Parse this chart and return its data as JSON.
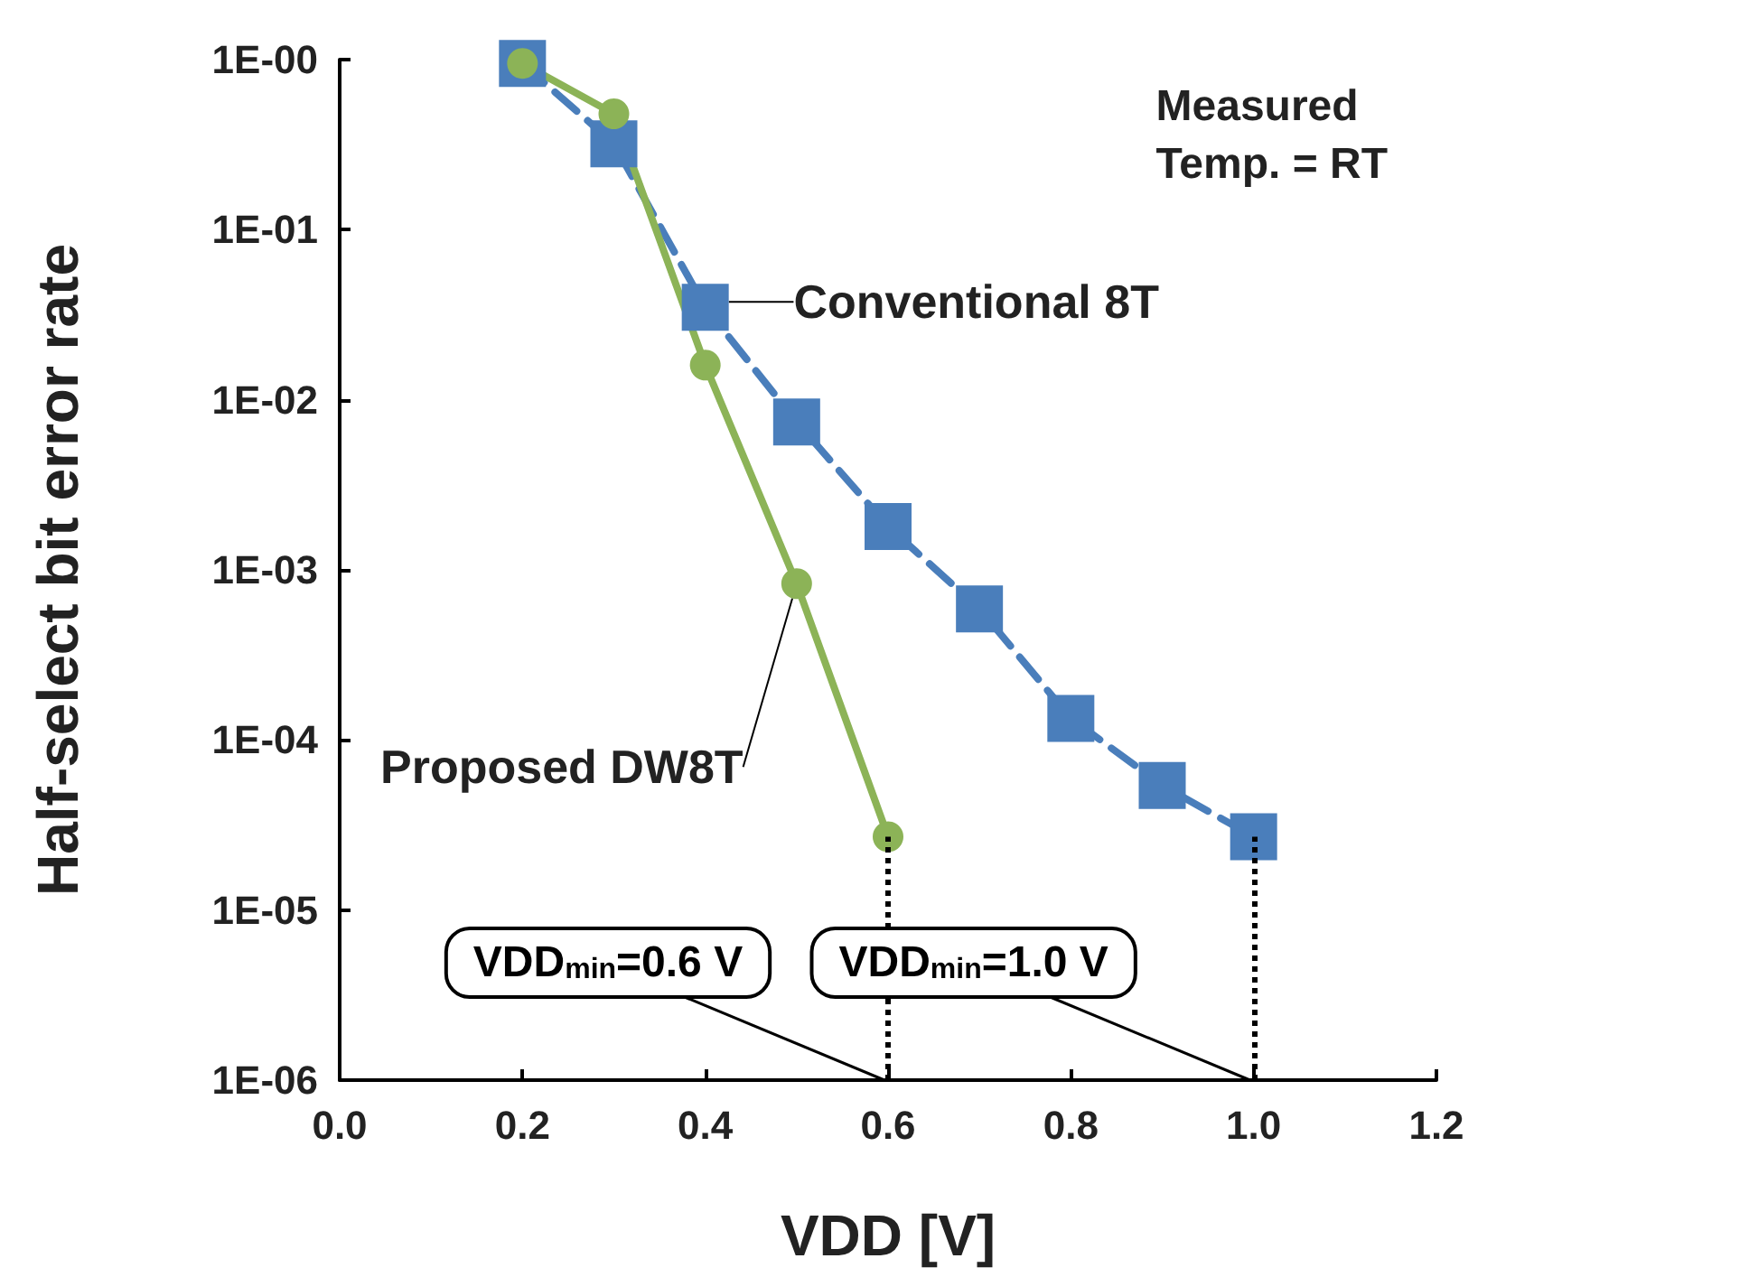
{
  "chart_data": {
    "type": "line",
    "xlabel": "VDD [V]",
    "ylabel": "Half-select bit error rate",
    "log": "y",
    "grid": false,
    "legend": false,
    "xlim": [
      0,
      1.2
    ],
    "xticks": [
      {
        "value": 0,
        "label": "0.0"
      },
      {
        "value": 0.2,
        "label": "0.2"
      },
      {
        "value": 0.4,
        "label": "0.4"
      },
      {
        "value": 0.6,
        "label": "0.6"
      },
      {
        "value": 0.8,
        "label": "0.8"
      },
      {
        "value": 1,
        "label": "1.0"
      },
      {
        "value": 1.2,
        "label": "1.2"
      }
    ],
    "ylim": [
      1e-06,
      1
    ],
    "yticks": [
      {
        "value": 1e-06,
        "label": "1E-06"
      },
      {
        "value": 1e-05,
        "label": "1E-05"
      },
      {
        "value": 0.0001,
        "label": "1E-04"
      },
      {
        "value": 0.001,
        "label": "1E-03"
      },
      {
        "value": 0.01,
        "label": "1E-02"
      },
      {
        "value": 0.1,
        "label": "1E-01"
      },
      {
        "value": 1,
        "label": "1E-00"
      }
    ],
    "series": [
      {
        "name": "Conventional 8T",
        "color": "#4a7ebb",
        "marker": "square",
        "line_style": "dashed",
        "x": [
          0.2,
          0.3,
          0.4,
          0.5,
          0.6,
          0.7,
          0.8,
          0.9,
          1.0
        ],
        "values": [
          0.95,
          0.32,
          0.035,
          0.0074,
          0.0018,
          0.00059,
          0.000134,
          5.4e-05,
          2.7e-05
        ]
      },
      {
        "name": "Proposed DW8T",
        "color": "#8cb357",
        "marker": "circle",
        "line_style": "solid",
        "x": [
          0.2,
          0.3,
          0.4,
          0.5,
          0.6
        ],
        "values": [
          0.95,
          0.48,
          0.016,
          0.00083,
          2.7e-05
        ]
      }
    ],
    "ref_lines": [
      {
        "axis": "x",
        "value": 0.6,
        "color": "#000000",
        "line_style": "dotted"
      },
      {
        "axis": "x",
        "value": 1.0,
        "color": "#000000",
        "line_style": "dotted"
      }
    ],
    "annotations": [
      "Measured\nTemp. = RT",
      {
        "text": "VDD$_{min}$=0.6 V",
        "x": 0.6,
        "y": 1e-06
      },
      {
        "text": "VDD$_{min}$=1.0 V",
        "x": 1.0,
        "y": 1e-06
      }
    ]
  }
}
